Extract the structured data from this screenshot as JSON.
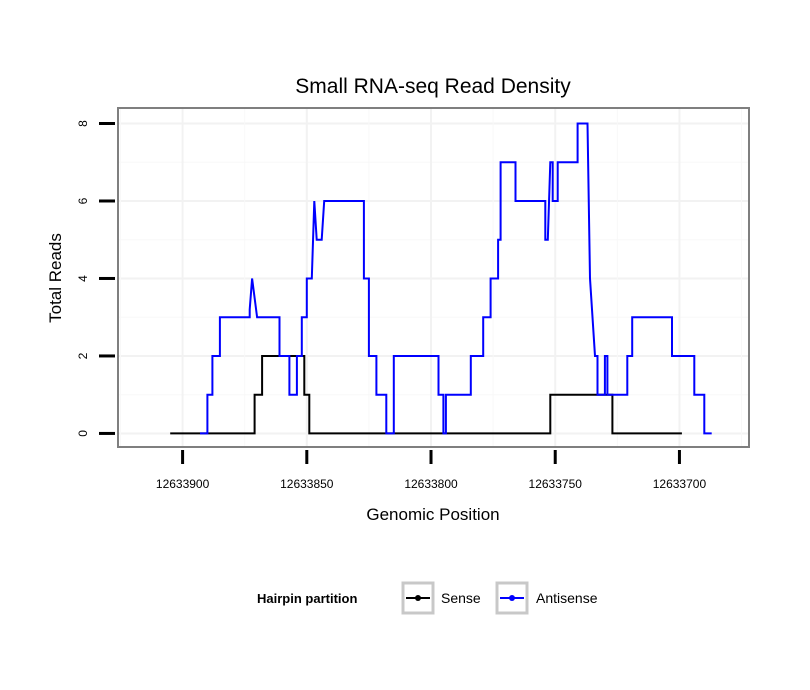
{
  "chart_data": {
    "type": "line",
    "title": "Small RNA-seq Read Density",
    "xlabel": "Genomic Position",
    "ylabel": "Total Reads",
    "x_reversed": true,
    "xlim": [
      12633926,
      12633672
    ],
    "ylim": [
      -0.35,
      8.4
    ],
    "x_ticks": [
      12633900,
      12633850,
      12633800,
      12633750,
      12633700
    ],
    "x_tick_labels": [
      "12633900",
      "12633850",
      "12633800",
      "12633750",
      "12633700"
    ],
    "y_ticks": [
      0,
      2,
      4,
      6,
      8
    ],
    "y_tick_labels": [
      "0",
      "2",
      "4",
      "6",
      "8"
    ],
    "grid": true,
    "legend": {
      "title": "Hairpin partition",
      "position": "bottom",
      "entries": [
        "Sense",
        "Antisense"
      ]
    },
    "series": [
      {
        "name": "Sense",
        "color": "#000000",
        "points": [
          [
            12633905,
            0
          ],
          [
            12633871,
            0
          ],
          [
            12633871,
            1
          ],
          [
            12633868,
            1
          ],
          [
            12633868,
            2
          ],
          [
            12633851,
            2
          ],
          [
            12633851,
            1
          ],
          [
            12633849,
            1
          ],
          [
            12633849,
            0
          ],
          [
            12633752,
            0
          ],
          [
            12633752,
            1
          ],
          [
            12633727,
            1
          ],
          [
            12633727,
            0
          ],
          [
            12633699,
            0
          ]
        ]
      },
      {
        "name": "Antisense",
        "color": "#0000ff",
        "points": [
          [
            12633893,
            0
          ],
          [
            12633890,
            0
          ],
          [
            12633890,
            1
          ],
          [
            12633888,
            1
          ],
          [
            12633888,
            2
          ],
          [
            12633885,
            2
          ],
          [
            12633885,
            3
          ],
          [
            12633873,
            3
          ],
          [
            12633873,
            3.2
          ],
          [
            12633872,
            4
          ],
          [
            12633870,
            3
          ],
          [
            12633861,
            3
          ],
          [
            12633861,
            2
          ],
          [
            12633857,
            2
          ],
          [
            12633857,
            1
          ],
          [
            12633854,
            1
          ],
          [
            12633854,
            2
          ],
          [
            12633852,
            2
          ],
          [
            12633852,
            3
          ],
          [
            12633850,
            3
          ],
          [
            12633850,
            4
          ],
          [
            12633848,
            4
          ],
          [
            12633847,
            6
          ],
          [
            12633846,
            5
          ],
          [
            12633844,
            5
          ],
          [
            12633843,
            6
          ],
          [
            12633827,
            6
          ],
          [
            12633827,
            4
          ],
          [
            12633825,
            4
          ],
          [
            12633825,
            2
          ],
          [
            12633822,
            2
          ],
          [
            12633822,
            1
          ],
          [
            12633818,
            1
          ],
          [
            12633818,
            0
          ],
          [
            12633815,
            0
          ],
          [
            12633815,
            2
          ],
          [
            12633797,
            2
          ],
          [
            12633797,
            1
          ],
          [
            12633795,
            1
          ],
          [
            12633795,
            0
          ],
          [
            12633794,
            0
          ],
          [
            12633794,
            1
          ],
          [
            12633784,
            1
          ],
          [
            12633784,
            2
          ],
          [
            12633779,
            2
          ],
          [
            12633779,
            3
          ],
          [
            12633776,
            3
          ],
          [
            12633776,
            4
          ],
          [
            12633773,
            4
          ],
          [
            12633773,
            5
          ],
          [
            12633772,
            5
          ],
          [
            12633772,
            7
          ],
          [
            12633766,
            7
          ],
          [
            12633766,
            6
          ],
          [
            12633754,
            6
          ],
          [
            12633754,
            5
          ],
          [
            12633753,
            5
          ],
          [
            12633752,
            7
          ],
          [
            12633751,
            7
          ],
          [
            12633751,
            6
          ],
          [
            12633749,
            6
          ],
          [
            12633749,
            7
          ],
          [
            12633741,
            7
          ],
          [
            12633741,
            8
          ],
          [
            12633737,
            8
          ],
          [
            12633736,
            4
          ],
          [
            12633734,
            2
          ],
          [
            12633733,
            2
          ],
          [
            12633733,
            1
          ],
          [
            12633730,
            1
          ],
          [
            12633730,
            2
          ],
          [
            12633729,
            2
          ],
          [
            12633729,
            1
          ],
          [
            12633721,
            1
          ],
          [
            12633721,
            2
          ],
          [
            12633719,
            2
          ],
          [
            12633719,
            3
          ],
          [
            12633703,
            3
          ],
          [
            12633703,
            2
          ],
          [
            12633694,
            2
          ],
          [
            12633694,
            1
          ],
          [
            12633690,
            1
          ],
          [
            12633690,
            0
          ],
          [
            12633687,
            0
          ]
        ]
      }
    ]
  }
}
